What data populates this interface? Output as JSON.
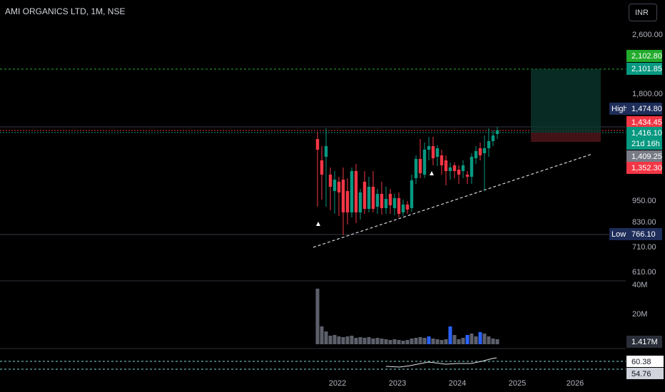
{
  "header": {
    "title": "AMI ORGANICS LTD, 1M, NSE",
    "currency": "INR"
  },
  "chart_data": {
    "type": "candlestick",
    "price_axis": {
      "ticks": [
        "2,600.00",
        "1,800.00",
        "950.00",
        "830.00",
        "710.00",
        "610.00"
      ]
    },
    "time_axis": {
      "ticks": [
        "2022",
        "2023",
        "2024",
        "2025",
        "2026"
      ]
    },
    "volume_axis": {
      "ticks": [
        "40M",
        "20M"
      ]
    },
    "oscillator_axis": {
      "ticks": [
        "60.38",
        "54.76"
      ]
    },
    "price_tags": [
      {
        "label": "",
        "value": "2,102.80",
        "bg": "#22ab2c",
        "fg": "#ffffff"
      },
      {
        "label": "",
        "value": "2,101.85",
        "bg": "#089981",
        "fg": "#ffffff"
      },
      {
        "label": "High",
        "value": "1,474.80",
        "bg": "#1e2d5a",
        "fg": "#ffffff"
      },
      {
        "label": "",
        "value": "1,434.45",
        "bg": "#f23645",
        "fg": "#ffffff"
      },
      {
        "label": "",
        "value": "1,416.10",
        "bg": "#089981",
        "fg": "#ffffff",
        "sub": "21d 16h"
      },
      {
        "label": "",
        "value": "1,409.25",
        "bg": "#787b86",
        "fg": "#ffffff"
      },
      {
        "label": "",
        "value": "1,352.30",
        "bg": "#f23645",
        "fg": "#ffffff"
      },
      {
        "label": "Low",
        "value": "766.10",
        "bg": "#1e2d5a",
        "fg": "#ffffff"
      }
    ],
    "volume_tag": "1.417M",
    "colors": {
      "up": "#089981",
      "down": "#f23645",
      "volume_hi": "#2962ff",
      "volume": "#5d606b"
    }
  }
}
